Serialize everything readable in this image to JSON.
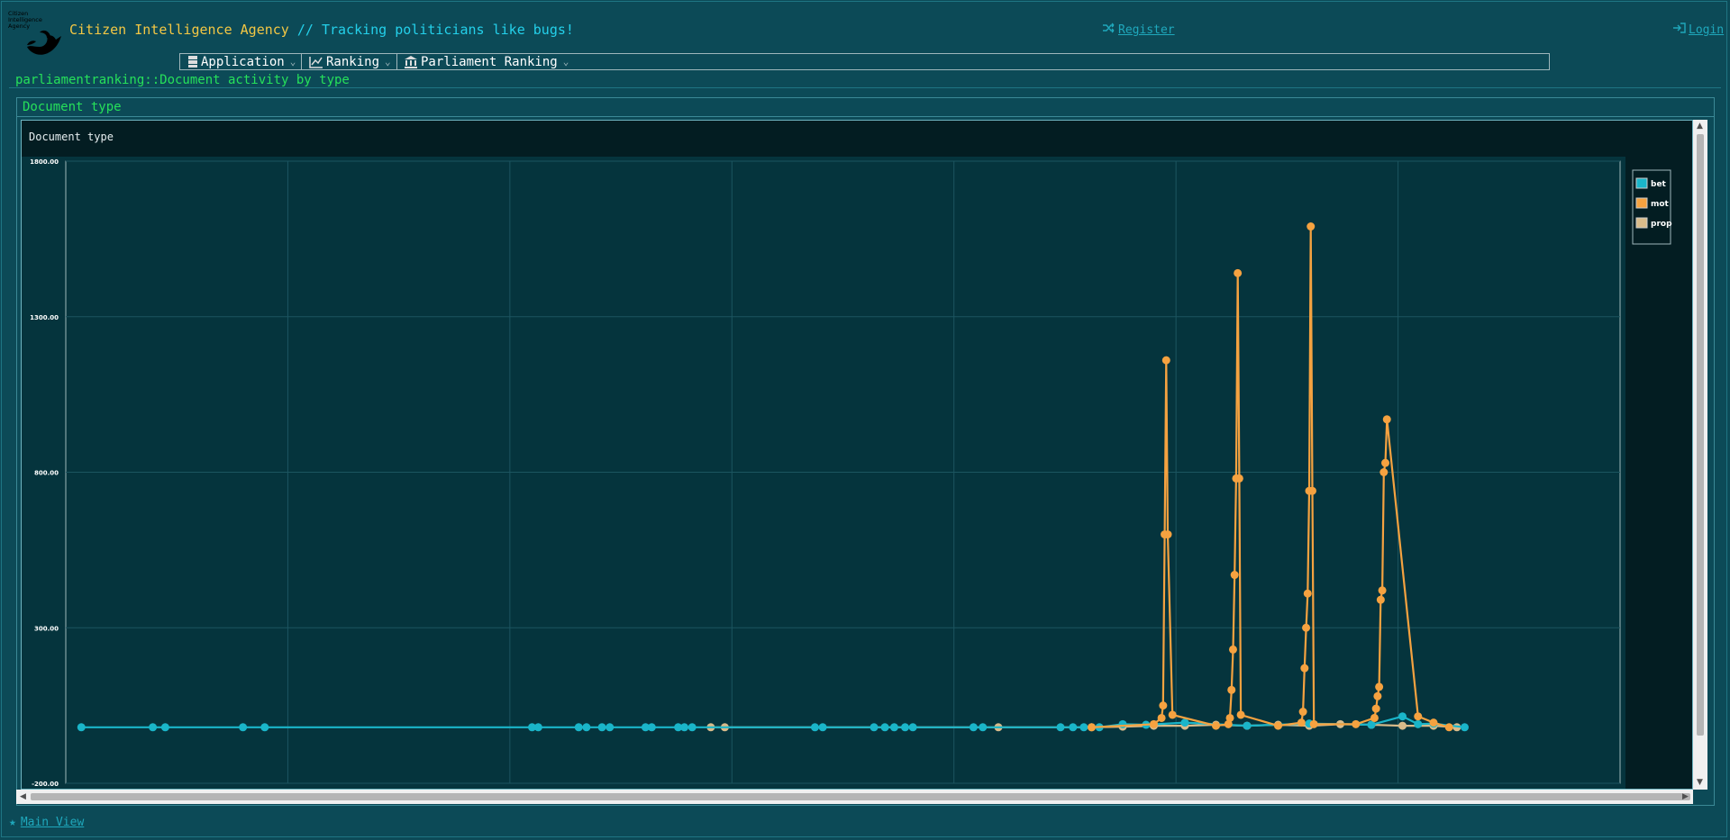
{
  "header": {
    "logo_text": "Citizen Intelligence Agency",
    "agency_name": "Citizen Intelligence Agency",
    "separator": " // ",
    "tagline": "Tracking politicians like bugs!",
    "register_label": "Register",
    "login_label": "Login"
  },
  "menu": [
    {
      "label": "Application",
      "icon": "server-icon"
    },
    {
      "label": "Ranking",
      "icon": "line-chart-icon"
    },
    {
      "label": "Parliament Ranking",
      "icon": "institution-icon"
    }
  ],
  "breadcrumb": "parliamentranking::Document activity by type",
  "section_title": "Document type",
  "footer": {
    "main_view_label": "Main View"
  },
  "colors": {
    "bet": "#1ab5c9",
    "mot": "#f5a240",
    "prop": "#d9bb8a",
    "accent": "#26e05a"
  },
  "chart_data": {
    "type": "line",
    "title": "Document type",
    "ylim": [
      -200,
      1800
    ],
    "yticks": [
      "1800.00",
      "1300.00",
      "800.00",
      "300.00",
      "-200.00"
    ],
    "legend_position": "top-right",
    "grid": true,
    "series": [
      {
        "name": "bet",
        "x": [
          0.01,
          0.056,
          0.064,
          0.114,
          0.128,
          0.3,
          0.304,
          0.33,
          0.335,
          0.345,
          0.35,
          0.373,
          0.377,
          0.394,
          0.398,
          0.403,
          0.482,
          0.487,
          0.52,
          0.527,
          0.533,
          0.54,
          0.545,
          0.584,
          0.59,
          0.64,
          0.648,
          0.655,
          0.665,
          0.68,
          0.695,
          0.72,
          0.76,
          0.8,
          0.84,
          0.86,
          0.87,
          0.88,
          0.9
        ],
        "y": [
          -20,
          -20,
          -20,
          -20,
          -20,
          -20,
          -20,
          -20,
          -20,
          -20,
          -20,
          -20,
          -20,
          -20,
          -20,
          -20,
          -20,
          -20,
          -20,
          -20,
          -20,
          -20,
          -20,
          -20,
          -20,
          -20,
          -20,
          -20,
          -20,
          -10,
          -12,
          -5,
          -15,
          -8,
          -12,
          15,
          -10,
          -8,
          -20
        ]
      },
      {
        "name": "mot",
        "x": [
          0.66,
          0.7,
          0.705,
          0.706,
          0.707,
          0.708,
          0.709,
          0.712,
          0.74,
          0.748,
          0.749,
          0.75,
          0.751,
          0.752,
          0.753,
          0.754,
          0.755,
          0.756,
          0.78,
          0.795,
          0.796,
          0.797,
          0.798,
          0.799,
          0.8,
          0.801,
          0.802,
          0.803,
          0.83,
          0.842,
          0.843,
          0.844,
          0.845,
          0.846,
          0.847,
          0.848,
          0.849,
          0.85,
          0.87,
          0.88,
          0.89
        ],
        "y": [
          -20,
          -10,
          10,
          50,
          600,
          1160,
          600,
          20,
          -15,
          -10,
          10,
          100,
          230,
          470,
          780,
          1440,
          780,
          20,
          -15,
          -5,
          30,
          170,
          300,
          410,
          740,
          1590,
          740,
          -10,
          -10,
          10,
          40,
          80,
          110,
          390,
          420,
          800,
          830,
          970,
          15,
          -5,
          -20
        ]
      },
      {
        "name": "prop",
        "x": [
          0.415,
          0.424,
          0.6,
          0.66,
          0.68,
          0.7,
          0.72,
          0.74,
          0.76,
          0.78,
          0.8,
          0.82,
          0.84,
          0.86,
          0.88,
          0.895
        ],
        "y": [
          -20,
          -20,
          -20,
          -20,
          -18,
          -15,
          -15,
          -12,
          -15,
          -12,
          -15,
          -10,
          -12,
          -15,
          -15,
          -20
        ]
      }
    ]
  }
}
